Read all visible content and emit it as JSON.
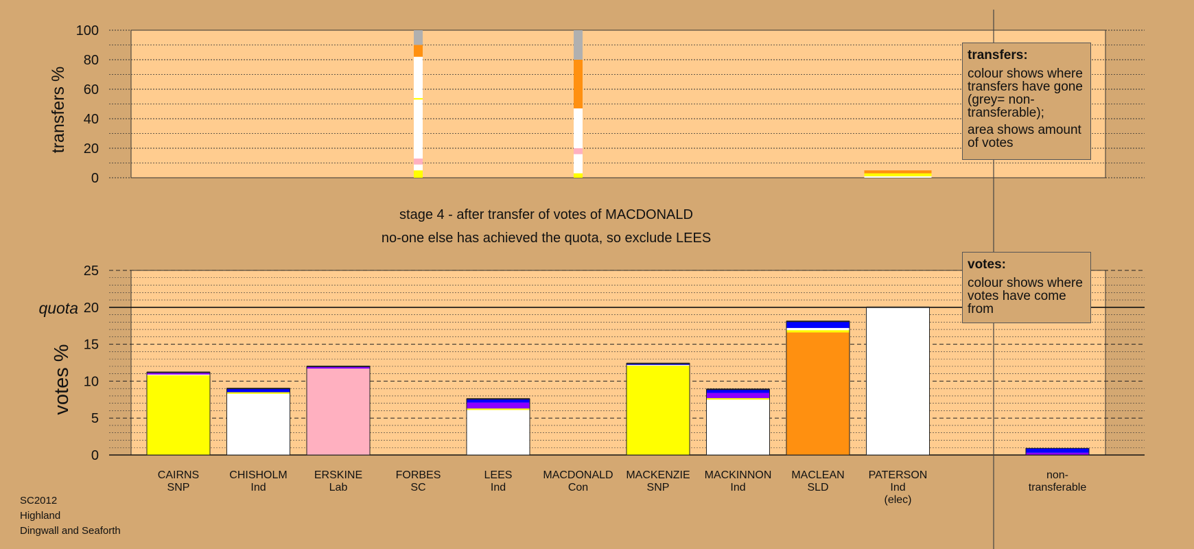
{
  "chart_data": {
    "type": "bar",
    "title_line1": "stage 4 - after transfer of votes of MACDONALD",
    "title_line2": "no-one else has achieved the quota, so exclude LEES",
    "footer": [
      "SC2012",
      "Highland",
      "Dingwall and Seaforth"
    ],
    "colors": {
      "panel": "#FFCC8F",
      "background": "#D4A872",
      "SNP": "#FFFF00",
      "Ind": "#FFFFFF",
      "Lab": "#FFB0C0",
      "SLD": "#FF9010",
      "Con": "#0000FF",
      "SC": "#8B00FF",
      "nontransferable": "#B0B0B0",
      "yellow": "#FFFF00"
    },
    "top_panel": {
      "ylabel": "transfers %",
      "ylim": [
        0,
        100
      ],
      "yticks": [
        "0",
        "20",
        "40",
        "60",
        "80",
        "100"
      ],
      "transfer_columns": [
        {
          "candidate": "FORBES",
          "segments": [
            {
              "from": 0,
              "to": 5,
              "color": "#FFFF00"
            },
            {
              "from": 5,
              "to": 9,
              "color": "#FFFFFF"
            },
            {
              "from": 9,
              "to": 13,
              "color": "#FFB0C0"
            },
            {
              "from": 13,
              "to": 53,
              "color": "#FFFFFF"
            },
            {
              "from": 53,
              "to": 54,
              "color": "#FFFF00"
            },
            {
              "from": 54,
              "to": 82,
              "color": "#FFFFFF"
            },
            {
              "from": 82,
              "to": 90,
              "color": "#FF9010"
            },
            {
              "from": 90,
              "to": 100,
              "color": "#B0B0B0"
            }
          ]
        },
        {
          "candidate": "MACDONALD",
          "segments": [
            {
              "from": 0,
              "to": 3,
              "color": "#FFFF00"
            },
            {
              "from": 3,
              "to": 16,
              "color": "#FFFFFF"
            },
            {
              "from": 16,
              "to": 20,
              "color": "#FFB0C0"
            },
            {
              "from": 20,
              "to": 47,
              "color": "#FFFFFF"
            },
            {
              "from": 47,
              "to": 80,
              "color": "#FF9010"
            },
            {
              "from": 80,
              "to": 100,
              "color": "#B0B0B0"
            }
          ]
        },
        {
          "candidate": "PATERSON",
          "wide": true,
          "segments": [
            {
              "from": 0,
              "to": 1,
              "color": "#FFFFFF"
            },
            {
              "from": 1,
              "to": 3,
              "color": "#FFFF00"
            },
            {
              "from": 3,
              "to": 5,
              "color": "#FF9010"
            }
          ]
        }
      ],
      "legend": {
        "title": "transfers:",
        "p1": "colour shows where transfers have gone (grey= non-transferable);",
        "p2": "area shows amount of votes"
      }
    },
    "bottom_panel": {
      "ylabel": "votes %",
      "ylim": [
        0,
        25
      ],
      "yticks": [
        "0",
        "5",
        "10",
        "15",
        "20",
        "25"
      ],
      "quota": 20,
      "quota_label": "quota",
      "legend": {
        "title": "votes:",
        "p1": "colour shows where votes have come from"
      }
    },
    "categories": [
      {
        "name": "CAIRNS",
        "party": "SNP",
        "extra": ""
      },
      {
        "name": "CHISHOLM",
        "party": "Ind",
        "extra": ""
      },
      {
        "name": "ERSKINE",
        "party": "Lab",
        "extra": ""
      },
      {
        "name": "FORBES",
        "party": "SC",
        "extra": ""
      },
      {
        "name": "LEES",
        "party": "Ind",
        "extra": ""
      },
      {
        "name": "MACDONALD",
        "party": "Con",
        "extra": ""
      },
      {
        "name": "MACKENZIE",
        "party": "SNP",
        "extra": ""
      },
      {
        "name": "MACKINNON",
        "party": "Ind",
        "extra": ""
      },
      {
        "name": "MACLEAN",
        "party": "SLD",
        "extra": ""
      },
      {
        "name": "PATERSON",
        "party": "Ind",
        "extra": "(elec)"
      },
      {
        "name": "non-",
        "party": "transferable",
        "extra": ""
      }
    ],
    "votes": [
      {
        "candidate": "CAIRNS",
        "segments": [
          {
            "value": 10.8,
            "color": "#FFFF00"
          },
          {
            "value": 0.1,
            "color": "#FFFFFF"
          },
          {
            "value": 0.2,
            "color": "#8B00FF"
          },
          {
            "value": 0.1,
            "color": "#0000FF"
          }
        ]
      },
      {
        "candidate": "CHISHOLM",
        "segments": [
          {
            "value": 8.3,
            "color": "#FFFFFF"
          },
          {
            "value": 0.2,
            "color": "#FFFF00"
          },
          {
            "value": 0.5,
            "color": "#0000FF"
          }
        ]
      },
      {
        "candidate": "ERSKINE",
        "segments": [
          {
            "value": 11.7,
            "color": "#FFB0C0"
          },
          {
            "value": 0.2,
            "color": "#8B00FF"
          },
          {
            "value": 0.1,
            "color": "#0000FF"
          }
        ]
      },
      {
        "candidate": "FORBES",
        "segments": []
      },
      {
        "candidate": "LEES",
        "segments": [
          {
            "value": 6.1,
            "color": "#FFFFFF"
          },
          {
            "value": 0.2,
            "color": "#FFFF00"
          },
          {
            "value": 0.8,
            "color": "#8B00FF"
          },
          {
            "value": 0.5,
            "color": "#0000FF"
          }
        ]
      },
      {
        "candidate": "MACDONALD",
        "segments": []
      },
      {
        "candidate": "MACKENZIE",
        "segments": [
          {
            "value": 12.1,
            "color": "#FFFF00"
          },
          {
            "value": 0.1,
            "color": "#FFFFFF"
          },
          {
            "value": 0.2,
            "color": "#0000FF"
          }
        ]
      },
      {
        "candidate": "MACKINNON",
        "segments": [
          {
            "value": 7.5,
            "color": "#FFFFFF"
          },
          {
            "value": 0.2,
            "color": "#FFFF00"
          },
          {
            "value": 0.7,
            "color": "#8B00FF"
          },
          {
            "value": 0.5,
            "color": "#0000FF"
          }
        ]
      },
      {
        "candidate": "MACLEAN",
        "segments": [
          {
            "value": 16.6,
            "color": "#FF9010"
          },
          {
            "value": 0.3,
            "color": "#FFFF00"
          },
          {
            "value": 0.3,
            "color": "#FFFFFF"
          },
          {
            "value": 0.9,
            "color": "#0000FF"
          }
        ]
      },
      {
        "candidate": "PATERSON",
        "segments": [
          {
            "value": 20,
            "color": "#FFFFFF"
          }
        ]
      },
      {
        "candidate": "non-transferable",
        "segments": [
          {
            "value": 0.3,
            "color": "#8B00FF"
          },
          {
            "value": 0.6,
            "color": "#0000FF"
          }
        ]
      }
    ]
  }
}
